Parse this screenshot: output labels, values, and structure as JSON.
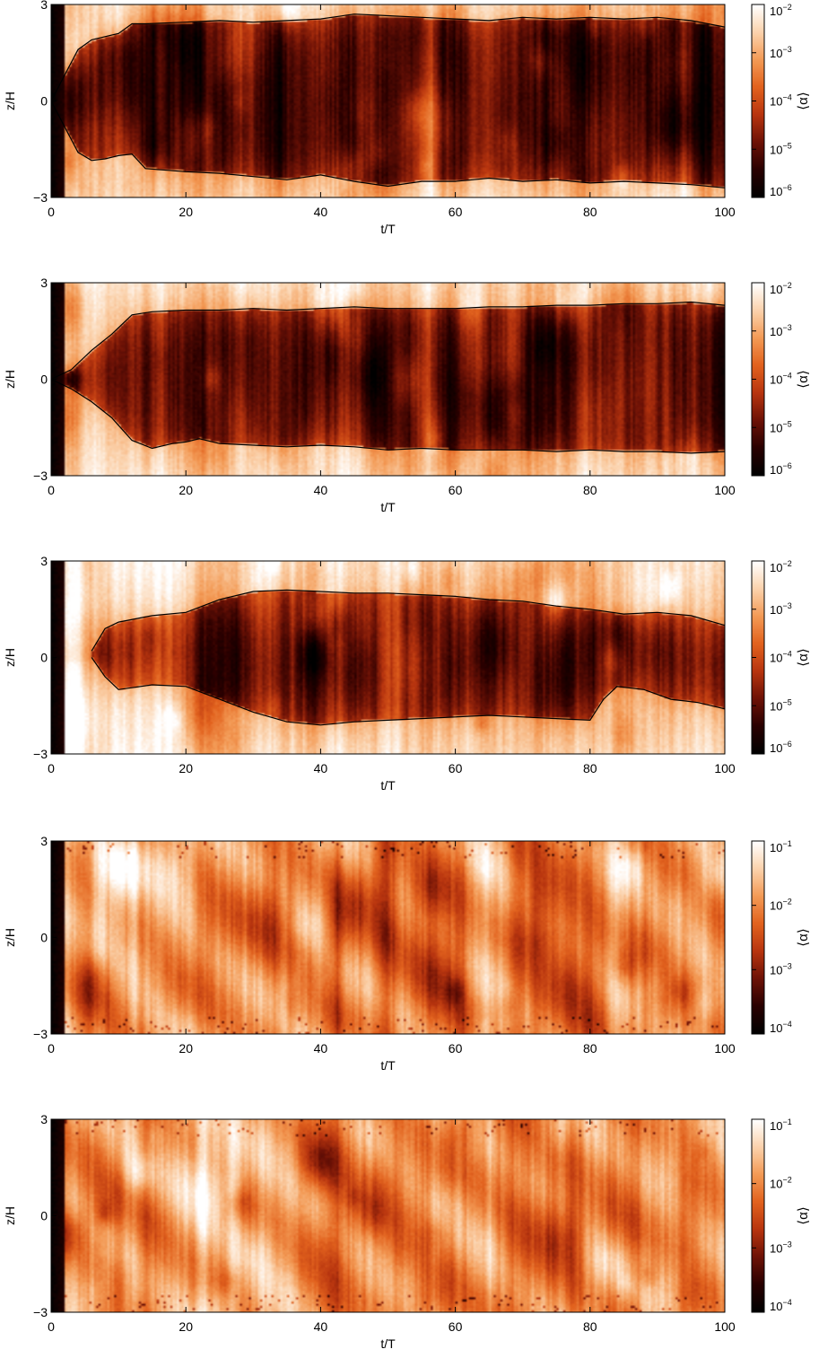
{
  "colormap": {
    "stops": [
      "#000000",
      "#2a0000",
      "#6e1206",
      "#b8350f",
      "#e2621e",
      "#f39a55",
      "#fbd2ac",
      "#ffffff"
    ],
    "contour_color": "#000000"
  },
  "chart_data": [
    {
      "type": "heatmap",
      "panel": 1,
      "xlabel": "t/T",
      "ylabel": "z/H",
      "xlim": [
        0,
        100
      ],
      "ylim": [
        -3,
        3
      ],
      "xticks": [
        "0",
        "20",
        "40",
        "60",
        "80",
        "100"
      ],
      "yticks": [
        "−3",
        "0",
        "3"
      ],
      "colorbar": {
        "label": "⟨α⟩",
        "scale": "log",
        "range": [
          1e-06,
          0.01
        ],
        "tick_values": [
          -2,
          -3,
          -4,
          -5,
          -6
        ]
      },
      "field": {
        "dead_core": true,
        "core_level": 0.18,
        "edge_level": 0.72
      },
      "contour_upper": [
        [
          0,
          0.0
        ],
        [
          2,
          0.8
        ],
        [
          4,
          1.6
        ],
        [
          6,
          1.9
        ],
        [
          8,
          2.0
        ],
        [
          10,
          2.1
        ],
        [
          12,
          2.4
        ],
        [
          14,
          2.4
        ],
        [
          20,
          2.45
        ],
        [
          25,
          2.5
        ],
        [
          30,
          2.45
        ],
        [
          35,
          2.5
        ],
        [
          40,
          2.55
        ],
        [
          45,
          2.7
        ],
        [
          50,
          2.65
        ],
        [
          55,
          2.6
        ],
        [
          60,
          2.55
        ],
        [
          65,
          2.5
        ],
        [
          70,
          2.6
        ],
        [
          75,
          2.55
        ],
        [
          80,
          2.6
        ],
        [
          85,
          2.55
        ],
        [
          90,
          2.6
        ],
        [
          95,
          2.5
        ],
        [
          100,
          2.3
        ]
      ],
      "contour_lower": [
        [
          0,
          0.0
        ],
        [
          2,
          -0.8
        ],
        [
          4,
          -1.6
        ],
        [
          6,
          -1.85
        ],
        [
          8,
          -1.8
        ],
        [
          10,
          -1.7
        ],
        [
          12,
          -1.65
        ],
        [
          14,
          -2.1
        ],
        [
          20,
          -2.2
        ],
        [
          25,
          -2.25
        ],
        [
          30,
          -2.35
        ],
        [
          35,
          -2.45
        ],
        [
          40,
          -2.3
        ],
        [
          45,
          -2.5
        ],
        [
          50,
          -2.65
        ],
        [
          55,
          -2.5
        ],
        [
          60,
          -2.5
        ],
        [
          65,
          -2.4
        ],
        [
          70,
          -2.5
        ],
        [
          75,
          -2.45
        ],
        [
          80,
          -2.55
        ],
        [
          85,
          -2.5
        ],
        [
          90,
          -2.55
        ],
        [
          95,
          -2.6
        ],
        [
          100,
          -2.7
        ]
      ]
    },
    {
      "type": "heatmap",
      "panel": 2,
      "xlabel": "t/T",
      "ylabel": "z/H",
      "xlim": [
        0,
        100
      ],
      "ylim": [
        -3,
        3
      ],
      "xticks": [
        "0",
        "20",
        "40",
        "60",
        "80",
        "100"
      ],
      "yticks": [
        "−3",
        "0",
        "3"
      ],
      "colorbar": {
        "label": "⟨α⟩",
        "scale": "log",
        "range": [
          1e-06,
          0.01
        ],
        "tick_values": [
          -2,
          -3,
          -4,
          -5,
          -6
        ]
      },
      "field": {
        "dead_core": true,
        "core_level": 0.2,
        "edge_level": 0.75
      },
      "contour_upper": [
        [
          0,
          0.0
        ],
        [
          3,
          0.3
        ],
        [
          6,
          0.9
        ],
        [
          9,
          1.4
        ],
        [
          12,
          2.0
        ],
        [
          15,
          2.1
        ],
        [
          20,
          2.15
        ],
        [
          25,
          2.15
        ],
        [
          30,
          2.2
        ],
        [
          35,
          2.15
        ],
        [
          40,
          2.2
        ],
        [
          45,
          2.25
        ],
        [
          50,
          2.2
        ],
        [
          55,
          2.2
        ],
        [
          60,
          2.2
        ],
        [
          65,
          2.25
        ],
        [
          70,
          2.25
        ],
        [
          75,
          2.3
        ],
        [
          80,
          2.3
        ],
        [
          85,
          2.35
        ],
        [
          90,
          2.35
        ],
        [
          95,
          2.4
        ],
        [
          100,
          2.3
        ]
      ],
      "contour_lower": [
        [
          0,
          0.0
        ],
        [
          3,
          -0.3
        ],
        [
          6,
          -0.7
        ],
        [
          9,
          -1.2
        ],
        [
          12,
          -1.9
        ],
        [
          15,
          -2.15
        ],
        [
          18,
          -2.0
        ],
        [
          20,
          -1.95
        ],
        [
          22,
          -1.85
        ],
        [
          25,
          -2.0
        ],
        [
          30,
          -2.05
        ],
        [
          35,
          -2.1
        ],
        [
          40,
          -2.05
        ],
        [
          45,
          -2.1
        ],
        [
          50,
          -2.2
        ],
        [
          55,
          -2.15
        ],
        [
          60,
          -2.2
        ],
        [
          65,
          -2.2
        ],
        [
          70,
          -2.2
        ],
        [
          75,
          -2.25
        ],
        [
          80,
          -2.2
        ],
        [
          85,
          -2.25
        ],
        [
          90,
          -2.25
        ],
        [
          95,
          -2.3
        ],
        [
          100,
          -2.25
        ]
      ]
    },
    {
      "type": "heatmap",
      "panel": 3,
      "xlabel": "t/T",
      "ylabel": "z/H",
      "xlim": [
        0,
        100
      ],
      "ylim": [
        -3,
        3
      ],
      "xticks": [
        "0",
        "20",
        "40",
        "60",
        "80",
        "100"
      ],
      "yticks": [
        "−3",
        "0",
        "3"
      ],
      "colorbar": {
        "label": "⟨α⟩",
        "scale": "log",
        "range": [
          1e-06,
          0.01
        ],
        "tick_values": [
          -2,
          -3,
          -4,
          -5,
          -6
        ]
      },
      "field": {
        "dead_core": true,
        "core_level": 0.28,
        "edge_level": 0.78
      },
      "contour_upper": [
        [
          6,
          0.2
        ],
        [
          8,
          0.9
        ],
        [
          10,
          1.1
        ],
        [
          15,
          1.3
        ],
        [
          20,
          1.4
        ],
        [
          25,
          1.8
        ],
        [
          30,
          2.05
        ],
        [
          35,
          2.1
        ],
        [
          40,
          2.05
        ],
        [
          45,
          2.0
        ],
        [
          50,
          2.0
        ],
        [
          55,
          1.95
        ],
        [
          60,
          1.9
        ],
        [
          65,
          1.8
        ],
        [
          70,
          1.75
        ],
        [
          75,
          1.6
        ],
        [
          80,
          1.5
        ],
        [
          85,
          1.35
        ],
        [
          90,
          1.4
        ],
        [
          95,
          1.3
        ],
        [
          100,
          1.0
        ]
      ],
      "contour_lower": [
        [
          6,
          0.0
        ],
        [
          8,
          -0.6
        ],
        [
          10,
          -1.0
        ],
        [
          15,
          -0.85
        ],
        [
          20,
          -0.9
        ],
        [
          25,
          -1.3
        ],
        [
          30,
          -1.7
        ],
        [
          35,
          -2.0
        ],
        [
          40,
          -2.1
        ],
        [
          45,
          -2.0
        ],
        [
          50,
          -1.95
        ],
        [
          55,
          -1.9
        ],
        [
          60,
          -1.85
        ],
        [
          65,
          -1.8
        ],
        [
          70,
          -1.85
        ],
        [
          75,
          -1.9
        ],
        [
          80,
          -1.95
        ],
        [
          82,
          -1.3
        ],
        [
          84,
          -0.9
        ],
        [
          88,
          -1.0
        ],
        [
          92,
          -1.3
        ],
        [
          96,
          -1.4
        ],
        [
          100,
          -1.6
        ]
      ]
    },
    {
      "type": "heatmap",
      "panel": 4,
      "xlabel": "t/T",
      "ylabel": "z/H",
      "xlim": [
        0,
        100
      ],
      "ylim": [
        -3,
        3
      ],
      "xticks": [
        "0",
        "20",
        "40",
        "60",
        "80",
        "100"
      ],
      "yticks": [
        "−3",
        "0",
        "3"
      ],
      "colorbar": {
        "label": "⟨α⟩",
        "scale": "log",
        "range": [
          0.0001,
          0.1
        ],
        "tick_values": [
          -1,
          -2,
          -3,
          -4
        ]
      },
      "field": {
        "dead_core": false,
        "core_level": 0.62,
        "edge_level": 0.7
      }
    },
    {
      "type": "heatmap",
      "panel": 5,
      "xlabel": "t/T",
      "ylabel": "z/H",
      "xlim": [
        0,
        100
      ],
      "ylim": [
        -3,
        3
      ],
      "xticks": [
        "0",
        "20",
        "40",
        "60",
        "80",
        "100"
      ],
      "yticks": [
        "−3",
        "0",
        "3"
      ],
      "colorbar": {
        "label": "⟨α⟩",
        "scale": "log",
        "range": [
          0.0001,
          0.1
        ],
        "tick_values": [
          -1,
          -2,
          -3,
          -4
        ]
      },
      "field": {
        "dead_core": false,
        "core_level": 0.64,
        "edge_level": 0.72
      }
    }
  ]
}
